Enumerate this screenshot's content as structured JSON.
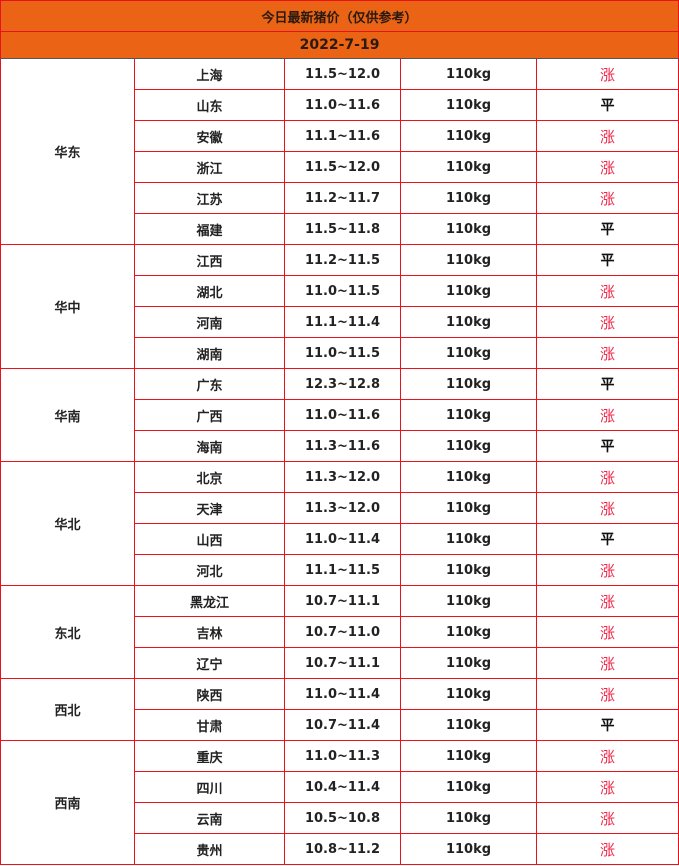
{
  "title": "今日最新猪价（仅供参考）",
  "date": "2022-7-19",
  "colors": {
    "header_bg": "#eb6415",
    "border": "#e8121a",
    "up": "#f0284a",
    "flat": "#111111"
  },
  "regions": [
    {
      "name": "华东",
      "rows": [
        [
          "上海",
          "11.5~12.0",
          "110kg",
          "涨"
        ],
        [
          "山东",
          "11.0~11.6",
          "110kg",
          "平"
        ],
        [
          "安徽",
          "11.1~11.6",
          "110kg",
          "涨"
        ],
        [
          "浙江",
          "11.5~12.0",
          "110kg",
          "涨"
        ],
        [
          "江苏",
          "11.2~11.7",
          "110kg",
          "涨"
        ],
        [
          "福建",
          "11.5~11.8",
          "110kg",
          "平"
        ]
      ]
    },
    {
      "name": "华中",
      "rows": [
        [
          "江西",
          "11.2~11.5",
          "110kg",
          "平"
        ],
        [
          "湖北",
          "11.0~11.5",
          "110kg",
          "涨"
        ],
        [
          "河南",
          "11.1~11.4",
          "110kg",
          "涨"
        ],
        [
          "湖南",
          "11.0~11.5",
          "110kg",
          "涨"
        ]
      ]
    },
    {
      "name": "华南",
      "rows": [
        [
          "广东",
          "12.3~12.8",
          "110kg",
          "平"
        ],
        [
          "广西",
          "11.0~11.6",
          "110kg",
          "涨"
        ],
        [
          "海南",
          "11.3~11.6",
          "110kg",
          "平"
        ]
      ]
    },
    {
      "name": "华北",
      "rows": [
        [
          "北京",
          "11.3~12.0",
          "110kg",
          "涨"
        ],
        [
          "天津",
          "11.3~12.0",
          "110kg",
          "涨"
        ],
        [
          "山西",
          "11.0~11.4",
          "110kg",
          "平"
        ],
        [
          "河北",
          "11.1~11.5",
          "110kg",
          "涨"
        ]
      ]
    },
    {
      "name": "东北",
      "rows": [
        [
          "黑龙江",
          "10.7~11.1",
          "110kg",
          "涨"
        ],
        [
          "吉林",
          "10.7~11.0",
          "110kg",
          "涨"
        ],
        [
          "辽宁",
          "10.7~11.1",
          "110kg",
          "涨"
        ]
      ]
    },
    {
      "name": "西北",
      "rows": [
        [
          "陕西",
          "11.0~11.4",
          "110kg",
          "涨"
        ],
        [
          "甘肃",
          "10.7~11.4",
          "110kg",
          "平"
        ]
      ]
    },
    {
      "name": "西南",
      "rows": [
        [
          "重庆",
          "11.0~11.3",
          "110kg",
          "涨"
        ],
        [
          "四川",
          "10.4~11.4",
          "110kg",
          "涨"
        ],
        [
          "云南",
          "10.5~10.8",
          "110kg",
          "涨"
        ],
        [
          "贵州",
          "10.8~11.2",
          "110kg",
          "涨"
        ]
      ]
    }
  ]
}
